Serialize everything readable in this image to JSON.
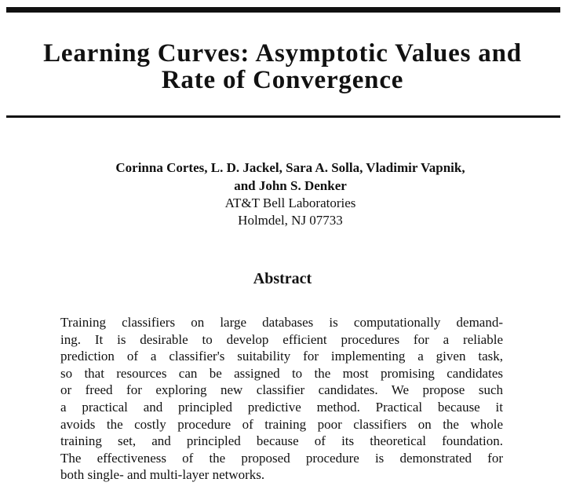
{
  "header": {
    "title": [
      "Learning Curves: Asymptotic Values and",
      "Rate of Convergence"
    ]
  },
  "authors": [
    "Corinna Cortes, L. D. Jackel, Sara A. Solla, Vladimir Vapnik,",
    "and John S. Denker"
  ],
  "affiliation": [
    "AT&T Bell Laboratories",
    "Holmdel, NJ 07733"
  ],
  "abstract": {
    "heading": "Abstract",
    "lines": [
      "Training classifiers on large databases is computationally demand-",
      "ing. It is desirable to develop efficient procedures for a reliable",
      "prediction of a classifier's suitability for implementing a given task,",
      "so that resources can be assigned to the most promising candidates",
      "or freed for exploring new classifier candidates. We propose such",
      "a practical and principled predictive method. Practical because it",
      "avoids the costly procedure of training poor classifiers on the whole",
      "training set, and principled because of its theoretical foundation.",
      "The effectiveness of the proposed procedure is demonstrated for",
      "both single- and multi-layer networks."
    ]
  }
}
